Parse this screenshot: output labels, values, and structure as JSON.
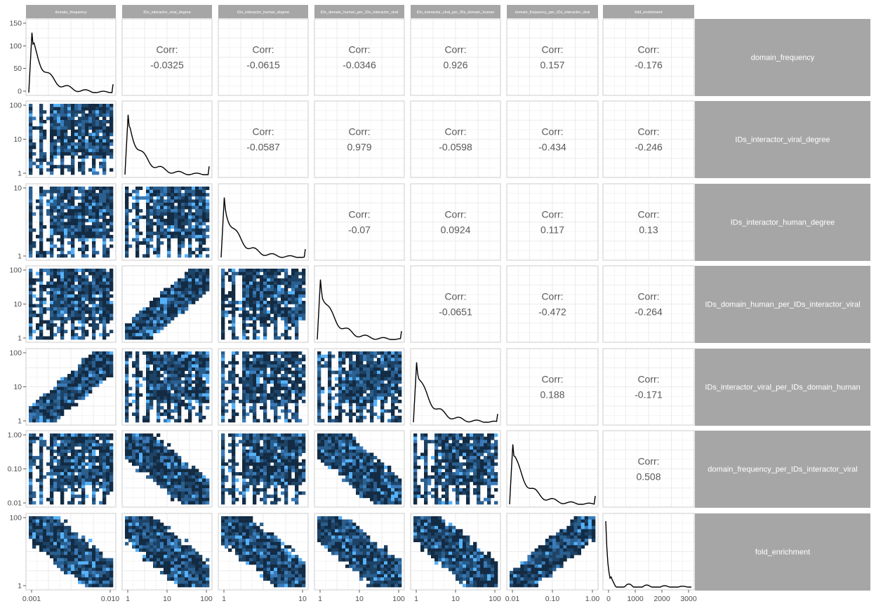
{
  "chart_data": {
    "type": "pairs-matrix",
    "variables": [
      "domain_frequency",
      "IDs_interactor_viral_degree",
      "IDs_interactor_human_degree",
      "IDs_domain_human_per_IDs_interactor_viral",
      "IDs_interactor_viral_per_IDs_domain_human",
      "domain_frequency_per_IDs_interactor_viral",
      "fold_enrichment"
    ],
    "corr_label": "Corr:",
    "correlations": [
      {
        "row": 0,
        "col": 1,
        "value": "-0.0325"
      },
      {
        "row": 0,
        "col": 2,
        "value": "-0.0615"
      },
      {
        "row": 0,
        "col": 3,
        "value": "-0.0346"
      },
      {
        "row": 0,
        "col": 4,
        "value": "0.926"
      },
      {
        "row": 0,
        "col": 5,
        "value": "0.157"
      },
      {
        "row": 0,
        "col": 6,
        "value": "-0.176"
      },
      {
        "row": 1,
        "col": 2,
        "value": "-0.0587"
      },
      {
        "row": 1,
        "col": 3,
        "value": "0.979"
      },
      {
        "row": 1,
        "col": 4,
        "value": "-0.0598"
      },
      {
        "row": 1,
        "col": 5,
        "value": "-0.434"
      },
      {
        "row": 1,
        "col": 6,
        "value": "-0.246"
      },
      {
        "row": 2,
        "col": 3,
        "value": "-0.07"
      },
      {
        "row": 2,
        "col": 4,
        "value": "0.0924"
      },
      {
        "row": 2,
        "col": 5,
        "value": "0.117"
      },
      {
        "row": 2,
        "col": 6,
        "value": "0.13"
      },
      {
        "row": 3,
        "col": 4,
        "value": "-0.0651"
      },
      {
        "row": 3,
        "col": 5,
        "value": "-0.472"
      },
      {
        "row": 3,
        "col": 6,
        "value": "-0.264"
      },
      {
        "row": 4,
        "col": 5,
        "value": "0.188"
      },
      {
        "row": 4,
        "col": 6,
        "value": "-0.171"
      },
      {
        "row": 5,
        "col": 6,
        "value": "0.508"
      }
    ],
    "y_axes": [
      {
        "scale": "linear",
        "ticks": [
          "150",
          "100",
          "50",
          "0"
        ]
      },
      {
        "scale": "log",
        "ticks": [
          "100",
          "10",
          "1"
        ]
      },
      {
        "scale": "log",
        "ticks": [
          "10",
          "1"
        ]
      },
      {
        "scale": "log",
        "ticks": [
          "100",
          "10",
          "1"
        ]
      },
      {
        "scale": "log",
        "ticks": [
          "100",
          "10",
          "1"
        ]
      },
      {
        "scale": "log",
        "ticks": [
          "1.00",
          "0.10",
          "0.01"
        ]
      },
      {
        "scale": "log",
        "ticks": [
          "100",
          "1"
        ]
      }
    ],
    "x_axes": [
      {
        "scale": "log",
        "ticks": [
          "0.001",
          "0.010"
        ]
      },
      {
        "scale": "log",
        "ticks": [
          "1",
          "10",
          "100"
        ]
      },
      {
        "scale": "log",
        "ticks": [
          "1",
          "10"
        ]
      },
      {
        "scale": "log",
        "ticks": [
          "1",
          "10",
          "100"
        ]
      },
      {
        "scale": "log",
        "ticks": [
          "1",
          "10",
          "100"
        ]
      },
      {
        "scale": "log",
        "ticks": [
          "0.01",
          "0.10",
          "1.00"
        ]
      },
      {
        "scale": "linear",
        "ticks": [
          "0",
          "1000",
          "2000",
          "3000"
        ]
      }
    ],
    "density_colors": [
      "#132b43",
      "#1d4366",
      "#2a5f8f",
      "#3a7ab8",
      "#56b1f7"
    ],
    "diag_line_color": "#000000",
    "strip_color": "#a6a6a6",
    "grid": true
  }
}
